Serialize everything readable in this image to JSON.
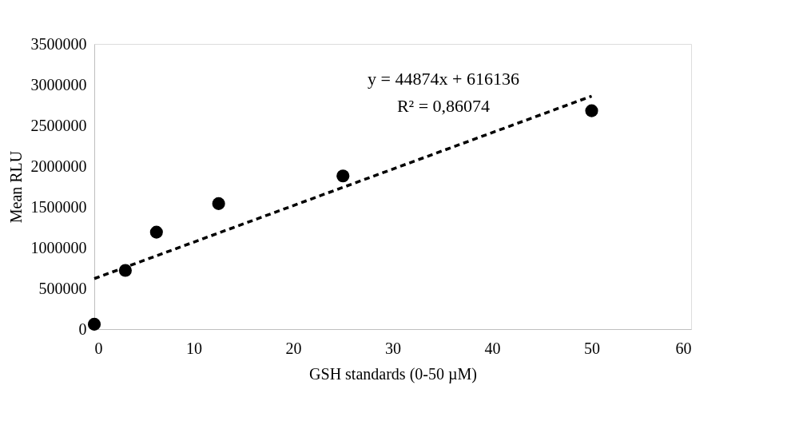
{
  "chart_data": {
    "type": "scatter",
    "xlabel": "GSH standards (0-50 µM)",
    "ylabel": "Mean RLU",
    "series": [
      {
        "color": "#000000",
        "x": [
          0,
          3.125,
          6.25,
          12.5,
          25,
          50
        ],
        "values": [
          60000,
          720000,
          1190000,
          1540000,
          1880000,
          2680000
        ],
        "marker": "circle"
      },
      {
        "type": "line",
        "color": "#000000",
        "x": [
          0,
          50
        ],
        "values": [
          620000,
          2860000
        ],
        "line_style": "dashed"
      }
    ],
    "annotations": [
      "y = 44874x + 616136",
      "R² = 0,86074"
    ],
    "xlim": [
      0,
      60
    ],
    "xticks": [
      0,
      10,
      20,
      30,
      40,
      50,
      60
    ],
    "ylim": [
      0,
      3500000
    ],
    "yticks": [
      0,
      500000,
      1000000,
      1500000,
      2000000,
      2500000,
      3000000,
      3500000
    ]
  }
}
